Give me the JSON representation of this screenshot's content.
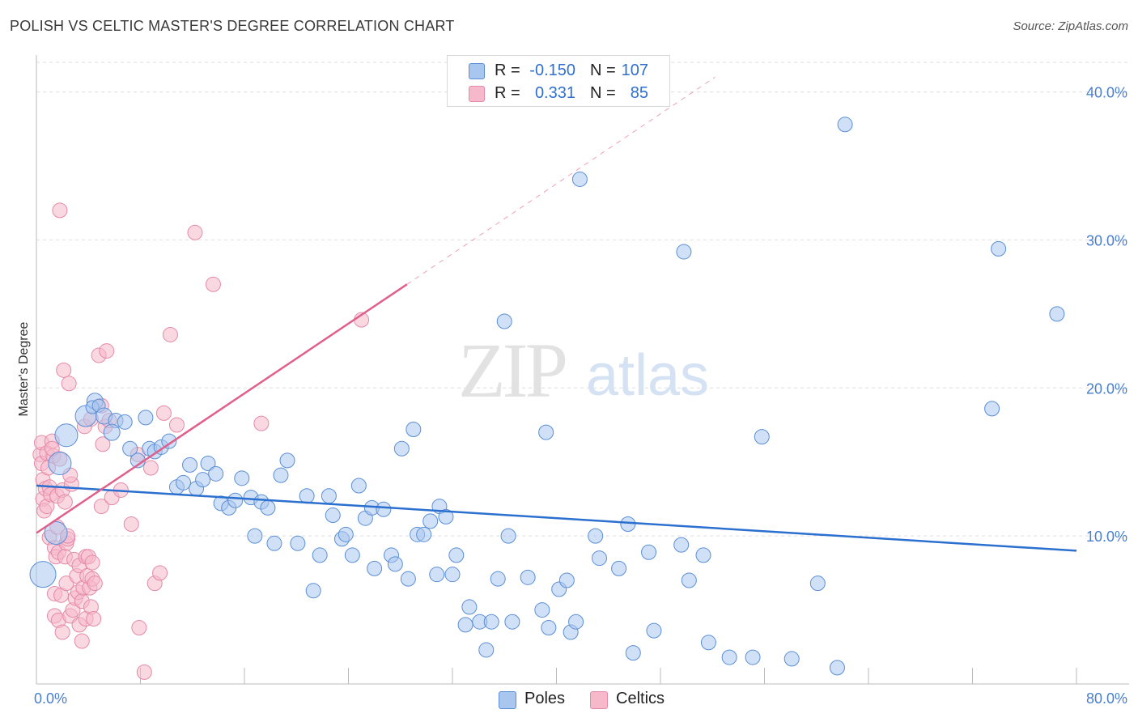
{
  "title": "POLISH VS CELTIC MASTER'S DEGREE CORRELATION CHART",
  "source": "Source: ZipAtlas.com",
  "watermark": {
    "zip": "ZIP",
    "atlas": "atlas"
  },
  "legend": {
    "poles": {
      "r_label": "R =",
      "r_value": "-0.150",
      "n_label": "N =",
      "n_value": "107"
    },
    "celtics": {
      "r_label": "R =",
      "r_value": "0.331",
      "n_label": "N =",
      "n_value": "85"
    }
  },
  "bottom_legend": {
    "poles": "Poles",
    "celtics": "Celtics"
  },
  "colors": {
    "poles_fill": "#a9c6ef",
    "poles_stroke": "#5b8fd6",
    "poles_line": "#2b6fcf",
    "celtics_fill": "#f6b8cb",
    "celtics_stroke": "#e58aa8",
    "celtics_line": "#e0608c",
    "tick_text": "#4a7fcf",
    "grid": "#dddddd"
  },
  "chart_data": {
    "type": "scatter",
    "title": "POLISH VS CELTIC MASTER'S DEGREE CORRELATION CHART",
    "xlabel": "",
    "ylabel": "Master's Degree",
    "xlim": [
      0,
      80
    ],
    "ylim": [
      0,
      42
    ],
    "x_tick_labels": [
      "0.0%",
      "80.0%"
    ],
    "y_ticks": [
      10,
      20,
      30,
      40
    ],
    "y_tick_labels": [
      "10.0%",
      "20.0%",
      "30.0%",
      "40.0%"
    ],
    "grid": true,
    "legend_position": "top-center",
    "series": [
      {
        "name": "Poles",
        "r": -0.15,
        "n": 107,
        "trend": {
          "x": [
            0,
            80
          ],
          "y": [
            13.4,
            9.0
          ],
          "dashed_extension": false
        },
        "points": [
          [
            0.5,
            7.4,
            16
          ],
          [
            1.5,
            10.2,
            14
          ],
          [
            1.8,
            14.9,
            14
          ],
          [
            2.3,
            16.8,
            14
          ],
          [
            3.8,
            18.1,
            13
          ],
          [
            4.5,
            19.1,
            10
          ],
          [
            4.3,
            18.7,
            8
          ],
          [
            4.8,
            18.8,
            8
          ],
          [
            5.2,
            18.1,
            10
          ],
          [
            6.1,
            17.8,
            9
          ],
          [
            5.8,
            17.0,
            10
          ],
          [
            6.8,
            17.7,
            9
          ],
          [
            7.2,
            15.9,
            9
          ],
          [
            7.8,
            15.1,
            9
          ],
          [
            8.4,
            18.0,
            9
          ],
          [
            8.7,
            15.9,
            9
          ],
          [
            9.1,
            15.7,
            9
          ],
          [
            9.6,
            16.0,
            9
          ],
          [
            10.2,
            16.4,
            9
          ],
          [
            10.8,
            13.3,
            9
          ],
          [
            11.3,
            13.6,
            9
          ],
          [
            11.8,
            14.8,
            9
          ],
          [
            12.3,
            13.2,
            9
          ],
          [
            12.8,
            13.8,
            9
          ],
          [
            13.2,
            14.9,
            9
          ],
          [
            13.8,
            14.2,
            9
          ],
          [
            14.2,
            12.2,
            9
          ],
          [
            14.8,
            11.9,
            9
          ],
          [
            15.3,
            12.4,
            9
          ],
          [
            15.8,
            13.9,
            9
          ],
          [
            16.5,
            12.6,
            9
          ],
          [
            16.8,
            10.0,
            9
          ],
          [
            17.3,
            12.3,
            9
          ],
          [
            17.8,
            11.9,
            9
          ],
          [
            18.3,
            9.5,
            9
          ],
          [
            18.8,
            14.1,
            9
          ],
          [
            19.3,
            15.1,
            9
          ],
          [
            20.1,
            9.5,
            9
          ],
          [
            20.8,
            12.7,
            9
          ],
          [
            21.3,
            6.3,
            9
          ],
          [
            21.8,
            8.7,
            9
          ],
          [
            22.5,
            12.7,
            9
          ],
          [
            22.8,
            11.4,
            9
          ],
          [
            23.5,
            9.8,
            9
          ],
          [
            23.8,
            10.1,
            9
          ],
          [
            24.3,
            8.7,
            9
          ],
          [
            24.8,
            13.4,
            9
          ],
          [
            25.3,
            11.2,
            9
          ],
          [
            25.8,
            11.9,
            9
          ],
          [
            26.0,
            7.8,
            9
          ],
          [
            26.7,
            11.8,
            9
          ],
          [
            27.3,
            8.7,
            9
          ],
          [
            27.6,
            8.1,
            9
          ],
          [
            28.1,
            15.9,
            9
          ],
          [
            28.6,
            7.1,
            9
          ],
          [
            29.0,
            17.2,
            9
          ],
          [
            29.3,
            10.1,
            9
          ],
          [
            29.8,
            10.1,
            9
          ],
          [
            30.3,
            11.0,
            9
          ],
          [
            30.8,
            7.4,
            9
          ],
          [
            31.0,
            12.0,
            9
          ],
          [
            31.5,
            11.3,
            9
          ],
          [
            32.0,
            7.4,
            9
          ],
          [
            32.3,
            8.7,
            9
          ],
          [
            33.0,
            4.0,
            9
          ],
          [
            33.3,
            5.2,
            9
          ],
          [
            34.1,
            4.2,
            9
          ],
          [
            34.6,
            2.3,
            9
          ],
          [
            35.0,
            4.2,
            9
          ],
          [
            35.5,
            7.1,
            9
          ],
          [
            36.0,
            24.5,
            9
          ],
          [
            36.3,
            10.0,
            9
          ],
          [
            36.6,
            4.2,
            9
          ],
          [
            37.8,
            7.2,
            9
          ],
          [
            38.9,
            5.0,
            9
          ],
          [
            39.2,
            17.0,
            9
          ],
          [
            39.4,
            3.8,
            9
          ],
          [
            40.2,
            6.4,
            9
          ],
          [
            40.8,
            7.0,
            9
          ],
          [
            41.1,
            3.5,
            9
          ],
          [
            41.5,
            4.2,
            9
          ],
          [
            41.8,
            34.1,
            9
          ],
          [
            43.0,
            10.0,
            9
          ],
          [
            43.3,
            8.5,
            9
          ],
          [
            44.8,
            7.8,
            9
          ],
          [
            45.5,
            10.8,
            9
          ],
          [
            45.9,
            2.1,
            9
          ],
          [
            47.1,
            8.9,
            9
          ],
          [
            47.5,
            3.6,
            9
          ],
          [
            49.6,
            9.4,
            9
          ],
          [
            49.8,
            29.2,
            9
          ],
          [
            50.2,
            7.0,
            9
          ],
          [
            51.3,
            8.7,
            9
          ],
          [
            51.7,
            2.8,
            9
          ],
          [
            53.3,
            1.8,
            9
          ],
          [
            55.1,
            1.8,
            9
          ],
          [
            55.8,
            16.7,
            9
          ],
          [
            58.1,
            1.7,
            9
          ],
          [
            60.1,
            6.8,
            9
          ],
          [
            61.6,
            1.1,
            9
          ],
          [
            62.2,
            37.8,
            9
          ],
          [
            73.5,
            18.6,
            9
          ],
          [
            74.0,
            29.4,
            9
          ],
          [
            78.5,
            25.0,
            9
          ]
        ]
      },
      {
        "name": "Celtics",
        "r": 0.331,
        "n": 85,
        "trend": {
          "x": [
            0,
            28.5
          ],
          "y": [
            10.2,
            27.0
          ],
          "dashed_to": [
            52.2,
            41.0
          ]
        },
        "points": [
          [
            0.3,
            15.5,
            9
          ],
          [
            0.4,
            16.3,
            9
          ],
          [
            0.4,
            14.9,
            9
          ],
          [
            0.5,
            13.8,
            9
          ],
          [
            0.5,
            12.5,
            9
          ],
          [
            0.6,
            11.7,
            9
          ],
          [
            0.7,
            13.2,
            9
          ],
          [
            0.8,
            12.0,
            9
          ],
          [
            0.8,
            15.6,
            9
          ],
          [
            0.9,
            14.6,
            9
          ],
          [
            1.0,
            13.3,
            9
          ],
          [
            1.0,
            9.9,
            9
          ],
          [
            1.1,
            12.8,
            9
          ],
          [
            1.2,
            16.4,
            9
          ],
          [
            1.3,
            15.4,
            9
          ],
          [
            1.4,
            9.2,
            9
          ],
          [
            1.4,
            6.1,
            9
          ],
          [
            1.4,
            4.6,
            9
          ],
          [
            1.5,
            8.6,
            9
          ],
          [
            1.6,
            12.7,
            9
          ],
          [
            1.6,
            10.6,
            9
          ],
          [
            1.7,
            4.3,
            9
          ],
          [
            1.7,
            8.9,
            9
          ],
          [
            1.8,
            15.2,
            9
          ],
          [
            1.9,
            6.0,
            9
          ],
          [
            2.0,
            3.5,
            9
          ],
          [
            2.0,
            13.1,
            9
          ],
          [
            2.2,
            12.3,
            9
          ],
          [
            2.3,
            9.5,
            9
          ],
          [
            2.2,
            8.6,
            9
          ],
          [
            2.3,
            6.8,
            9
          ],
          [
            2.4,
            9.8,
            9
          ],
          [
            2.4,
            10.0,
            9
          ],
          [
            2.5,
            20.3,
            9
          ],
          [
            2.6,
            4.6,
            9
          ],
          [
            2.7,
            13.5,
            9
          ],
          [
            2.8,
            5.0,
            9
          ],
          [
            2.9,
            8.4,
            9
          ],
          [
            3.0,
            5.8,
            9
          ],
          [
            3.1,
            7.3,
            9
          ],
          [
            3.2,
            6.2,
            9
          ],
          [
            3.3,
            4.0,
            9
          ],
          [
            3.3,
            8.0,
            9
          ],
          [
            3.5,
            5.6,
            9
          ],
          [
            3.5,
            2.9,
            9
          ],
          [
            3.6,
            6.5,
            9
          ],
          [
            3.7,
            17.4,
            9
          ],
          [
            3.8,
            4.4,
            9
          ],
          [
            3.8,
            8.6,
            9
          ],
          [
            3.9,
            7.3,
            9
          ],
          [
            4.0,
            8.6,
            9
          ],
          [
            4.1,
            6.5,
            9
          ],
          [
            4.2,
            5.2,
            9
          ],
          [
            4.2,
            17.9,
            9
          ],
          [
            4.3,
            8.2,
            9
          ],
          [
            4.3,
            7.1,
            9
          ],
          [
            4.4,
            4.4,
            9
          ],
          [
            4.5,
            6.8,
            9
          ],
          [
            4.8,
            22.2,
            9
          ],
          [
            5.0,
            18.8,
            9
          ],
          [
            5.0,
            12.0,
            9
          ],
          [
            5.1,
            16.2,
            9
          ],
          [
            5.3,
            17.4,
            9
          ],
          [
            5.6,
            17.8,
            9
          ],
          [
            5.8,
            12.6,
            9
          ],
          [
            6.5,
            13.1,
            9
          ],
          [
            7.3,
            10.8,
            9
          ],
          [
            7.8,
            15.5,
            9
          ],
          [
            7.9,
            3.8,
            9
          ],
          [
            8.3,
            0.8,
            9
          ],
          [
            8.8,
            14.6,
            9
          ],
          [
            9.1,
            6.8,
            9
          ],
          [
            9.5,
            7.5,
            9
          ],
          [
            9.8,
            18.3,
            9
          ],
          [
            10.3,
            23.6,
            9
          ],
          [
            10.8,
            17.5,
            9
          ],
          [
            12.2,
            30.5,
            9
          ],
          [
            13.6,
            27.0,
            9
          ],
          [
            17.3,
            17.6,
            9
          ],
          [
            25.0,
            24.6,
            9
          ],
          [
            1.8,
            32.0,
            9
          ],
          [
            2.1,
            21.2,
            9
          ],
          [
            5.4,
            22.5,
            9
          ],
          [
            1.2,
            15.9,
            9
          ],
          [
            2.6,
            14.1,
            9
          ]
        ]
      }
    ]
  }
}
